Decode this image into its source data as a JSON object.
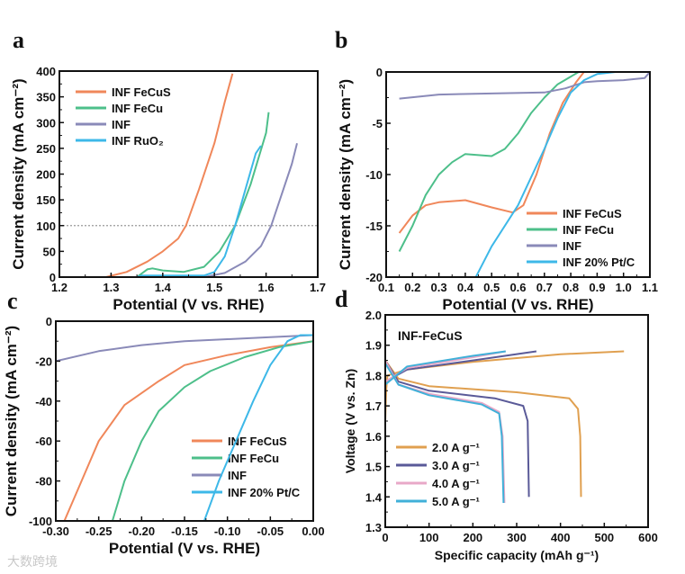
{
  "panel_labels": [
    "a",
    "b",
    "c",
    "d"
  ],
  "watermark": "大数跨境",
  "chart_data": [
    {
      "type": "line",
      "panel": "a",
      "xlabel": "Potential (V vs. RHE)",
      "ylabel": "Current density (mA cm⁻²)",
      "xlim": [
        1.2,
        1.7
      ],
      "ylim": [
        0,
        400
      ],
      "xticks": [
        "1.2",
        "1.3",
        "1.4",
        "1.5",
        "1.6",
        "1.7"
      ],
      "yticks": [
        "0",
        "50",
        "100",
        "150",
        "200",
        "250",
        "300",
        "350",
        "400"
      ],
      "reference_line": {
        "y": 100,
        "style": "dotted"
      },
      "legend_position": "top-left",
      "series": [
        {
          "name": "INF FeCuS",
          "color": "#f0875a",
          "points": [
            [
              1.2,
              0
            ],
            [
              1.29,
              0
            ],
            [
              1.33,
              10
            ],
            [
              1.37,
              30
            ],
            [
              1.4,
              50
            ],
            [
              1.43,
              75
            ],
            [
              1.445,
              100
            ],
            [
              1.47,
              170
            ],
            [
              1.5,
              260
            ],
            [
              1.52,
              340
            ],
            [
              1.535,
              395
            ]
          ]
        },
        {
          "name": "INF FeCu",
          "color": "#4dbf8a",
          "points": [
            [
              1.2,
              0
            ],
            [
              1.35,
              0
            ],
            [
              1.37,
              15
            ],
            [
              1.38,
              17
            ],
            [
              1.4,
              13
            ],
            [
              1.44,
              10
            ],
            [
              1.48,
              20
            ],
            [
              1.51,
              50
            ],
            [
              1.54,
              100
            ],
            [
              1.57,
              180
            ],
            [
              1.6,
              280
            ],
            [
              1.605,
              320
            ]
          ]
        },
        {
          "name": "INF",
          "color": "#8a8ab8",
          "points": [
            [
              1.2,
              0
            ],
            [
              1.48,
              0
            ],
            [
              1.52,
              8
            ],
            [
              1.56,
              30
            ],
            [
              1.59,
              60
            ],
            [
              1.61,
              100
            ],
            [
              1.63,
              160
            ],
            [
              1.65,
              220
            ],
            [
              1.66,
              260
            ]
          ]
        },
        {
          "name": "INF RuO₂",
          "color": "#3db8e8",
          "points": [
            [
              1.2,
              0
            ],
            [
              1.35,
              0
            ],
            [
              1.36,
              3
            ],
            [
              1.48,
              3
            ],
            [
              1.5,
              10
            ],
            [
              1.52,
              40
            ],
            [
              1.54,
              100
            ],
            [
              1.56,
              170
            ],
            [
              1.58,
              240
            ],
            [
              1.59,
              255
            ]
          ]
        }
      ]
    },
    {
      "type": "line",
      "panel": "b",
      "xlabel": "Potential (V vs. RHE)",
      "ylabel": "Current density (mA cm⁻²)",
      "xlim": [
        0.1,
        1.1
      ],
      "ylim": [
        -20,
        0
      ],
      "xticks": [
        "0.1",
        "0.2",
        "0.3",
        "0.4",
        "0.5",
        "0.6",
        "0.7",
        "0.8",
        "0.9",
        "1.0",
        "1.1"
      ],
      "yticks": [
        "-20",
        "-15",
        "-10",
        "-5",
        "0"
      ],
      "legend_position": "bottom-right",
      "series": [
        {
          "name": "INF FeCuS",
          "color": "#f0875a",
          "points": [
            [
              0.15,
              -15.7
            ],
            [
              0.2,
              -14
            ],
            [
              0.25,
              -13
            ],
            [
              0.3,
              -12.7
            ],
            [
              0.4,
              -12.5
            ],
            [
              0.5,
              -13.2
            ],
            [
              0.58,
              -13.7
            ],
            [
              0.62,
              -13
            ],
            [
              0.67,
              -10
            ],
            [
              0.72,
              -6
            ],
            [
              0.77,
              -3
            ],
            [
              0.82,
              -1
            ],
            [
              0.85,
              0
            ]
          ]
        },
        {
          "name": "INF FeCu",
          "color": "#4dbf8a",
          "points": [
            [
              0.15,
              -17.5
            ],
            [
              0.2,
              -15
            ],
            [
              0.25,
              -12
            ],
            [
              0.3,
              -10
            ],
            [
              0.35,
              -8.8
            ],
            [
              0.4,
              -8
            ],
            [
              0.5,
              -8.2
            ],
            [
              0.55,
              -7.5
            ],
            [
              0.6,
              -6
            ],
            [
              0.65,
              -4
            ],
            [
              0.7,
              -2.5
            ],
            [
              0.75,
              -1.2
            ],
            [
              0.83,
              0
            ]
          ]
        },
        {
          "name": "INF",
          "color": "#8a8ab8",
          "points": [
            [
              0.15,
              -2.6
            ],
            [
              0.3,
              -2.2
            ],
            [
              0.5,
              -2.1
            ],
            [
              0.7,
              -2
            ],
            [
              0.78,
              -1.6
            ],
            [
              0.85,
              -1
            ],
            [
              0.9,
              -0.9
            ],
            [
              1.0,
              -0.8
            ],
            [
              1.08,
              -0.6
            ],
            [
              1.1,
              0
            ]
          ]
        },
        {
          "name": "INF 20% Pt/C",
          "color": "#3db8e8",
          "points": [
            [
              0.44,
              -20
            ],
            [
              0.5,
              -17
            ],
            [
              0.6,
              -13
            ],
            [
              0.7,
              -7.5
            ],
            [
              0.75,
              -4.5
            ],
            [
              0.8,
              -2
            ],
            [
              0.85,
              -0.8
            ],
            [
              0.9,
              -0.2
            ],
            [
              0.97,
              0
            ]
          ]
        }
      ]
    },
    {
      "type": "line",
      "panel": "c",
      "xlabel": "Potential (V vs. RHE)",
      "ylabel": "Current density (mA cm⁻²)",
      "xlim": [
        -0.3,
        0.0
      ],
      "ylim": [
        -100,
        0
      ],
      "xticks": [
        "-0.30",
        "-0.25",
        "-0.20",
        "-0.15",
        "-0.10",
        "-0.05",
        "0.00"
      ],
      "yticks": [
        "-100",
        "-80",
        "-60",
        "-40",
        "-20",
        "0"
      ],
      "legend_position": "bottom-right",
      "series": [
        {
          "name": "INF FeCuS",
          "color": "#f0875a",
          "points": [
            [
              -0.29,
              -100
            ],
            [
              -0.27,
              -80
            ],
            [
              -0.25,
              -60
            ],
            [
              -0.22,
              -42
            ],
            [
              -0.18,
              -30
            ],
            [
              -0.15,
              -22
            ],
            [
              -0.1,
              -17
            ],
            [
              -0.05,
              -13
            ],
            [
              0,
              -10
            ]
          ]
        },
        {
          "name": "INF FeCu",
          "color": "#4dbf8a",
          "points": [
            [
              -0.234,
              -100
            ],
            [
              -0.22,
              -80
            ],
            [
              -0.2,
              -60
            ],
            [
              -0.18,
              -45
            ],
            [
              -0.15,
              -33
            ],
            [
              -0.12,
              -25
            ],
            [
              -0.08,
              -18
            ],
            [
              -0.04,
              -13
            ],
            [
              0,
              -10
            ]
          ]
        },
        {
          "name": "INF",
          "color": "#8a8ab8",
          "points": [
            [
              -0.3,
              -20
            ],
            [
              -0.25,
              -15
            ],
            [
              -0.2,
              -12
            ],
            [
              -0.15,
              -10
            ],
            [
              -0.1,
              -9
            ],
            [
              -0.05,
              -8
            ],
            [
              0,
              -7
            ]
          ]
        },
        {
          "name": "INF 20% Pt/C",
          "color": "#3db8e8",
          "points": [
            [
              -0.127,
              -100
            ],
            [
              -0.11,
              -80
            ],
            [
              -0.09,
              -60
            ],
            [
              -0.07,
              -40
            ],
            [
              -0.05,
              -22
            ],
            [
              -0.03,
              -10
            ],
            [
              -0.015,
              -7
            ],
            [
              0,
              -7
            ]
          ]
        }
      ]
    },
    {
      "type": "line",
      "panel": "d",
      "title": "INF-FeCuS",
      "xlabel": "Specific capacity (mAh g⁻¹)",
      "ylabel": "Voltage (V vs. Zn)",
      "xlim": [
        0,
        600
      ],
      "ylim": [
        1.3,
        2.0
      ],
      "xticks": [
        "0",
        "100",
        "200",
        "300",
        "400",
        "500",
        "600"
      ],
      "yticks": [
        "1.3",
        "1.4",
        "1.5",
        "1.6",
        "1.7",
        "1.8",
        "1.9",
        "2.0"
      ],
      "legend_position": "bottom-left",
      "series": [
        {
          "name": "2.0 A g⁻¹",
          "color": "#e0a050",
          "charge": [
            [
              0,
              1.65
            ],
            [
              2,
              1.75
            ],
            [
              5,
              1.8
            ],
            [
              50,
              1.82
            ],
            [
              200,
              1.845
            ],
            [
              400,
              1.87
            ],
            [
              545,
              1.88
            ]
          ],
          "discharge": [
            [
              0,
              1.85
            ],
            [
              30,
              1.79
            ],
            [
              100,
              1.765
            ],
            [
              300,
              1.745
            ],
            [
              420,
              1.725
            ],
            [
              440,
              1.69
            ],
            [
              445,
              1.6
            ],
            [
              447,
              1.4
            ]
          ]
        },
        {
          "name": "3.0 A g⁻¹",
          "color": "#5a5a98",
          "charge": [
            [
              0,
              1.78
            ],
            [
              50,
              1.82
            ],
            [
              200,
              1.85
            ],
            [
              345,
              1.88
            ]
          ],
          "discharge": [
            [
              0,
              1.85
            ],
            [
              30,
              1.78
            ],
            [
              100,
              1.75
            ],
            [
              250,
              1.725
            ],
            [
              315,
              1.7
            ],
            [
              325,
              1.65
            ],
            [
              328,
              1.4
            ]
          ]
        },
        {
          "name": "4.0 A g⁻¹",
          "color": "#e8a8c8",
          "charge": [
            [
              0,
              1.78
            ],
            [
              50,
              1.825
            ],
            [
              200,
              1.86
            ],
            [
              275,
              1.88
            ]
          ],
          "discharge": [
            [
              0,
              1.85
            ],
            [
              30,
              1.77
            ],
            [
              100,
              1.74
            ],
            [
              220,
              1.71
            ],
            [
              260,
              1.68
            ],
            [
              268,
              1.6
            ],
            [
              272,
              1.38
            ]
          ]
        },
        {
          "name": "5.0 A g⁻¹",
          "color": "#40b0d8",
          "charge": [
            [
              0,
              1.77
            ],
            [
              50,
              1.83
            ],
            [
              200,
              1.865
            ],
            [
              275,
              1.88
            ]
          ],
          "discharge": [
            [
              0,
              1.84
            ],
            [
              30,
              1.77
            ],
            [
              100,
              1.735
            ],
            [
              220,
              1.705
            ],
            [
              260,
              1.675
            ],
            [
              266,
              1.6
            ],
            [
              270,
              1.38
            ]
          ]
        }
      ]
    }
  ]
}
